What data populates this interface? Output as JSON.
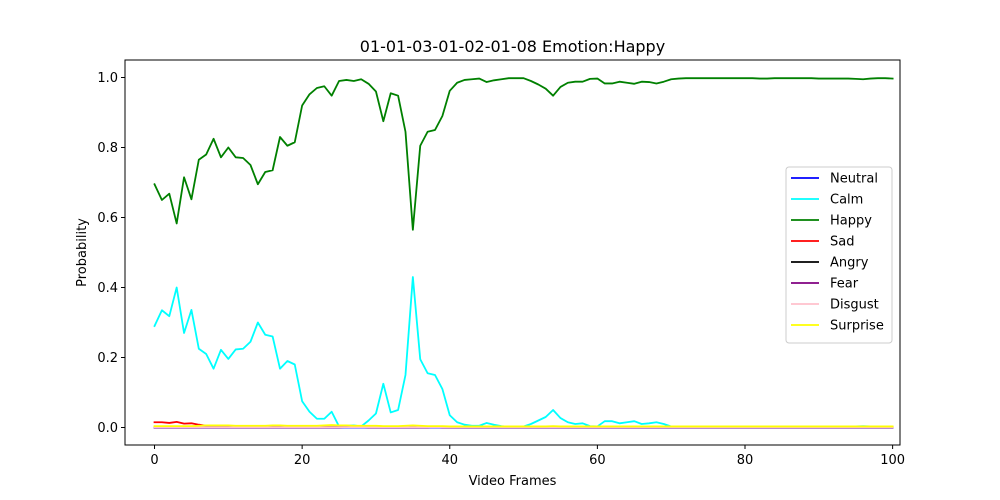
{
  "chart_data": {
    "type": "line",
    "title": "01-01-03-01-02-01-08 Emotion:Happy",
    "xlabel": "Video Frames",
    "ylabel": "Probability",
    "xlim": [
      -4,
      101
    ],
    "ylim": [
      -0.05,
      1.05
    ],
    "xticks": [
      0,
      20,
      40,
      60,
      80,
      100
    ],
    "yticks": [
      0.0,
      0.2,
      0.4,
      0.6,
      0.8,
      1.0
    ],
    "xtick_labels": [
      "0",
      "20",
      "40",
      "60",
      "80",
      "100"
    ],
    "ytick_labels": [
      "0.0",
      "0.2",
      "0.4",
      "0.6",
      "0.8",
      "1.0"
    ],
    "grid": false,
    "legend_position": "center-right",
    "x": [
      0,
      1,
      2,
      3,
      4,
      5,
      6,
      7,
      8,
      9,
      10,
      11,
      12,
      13,
      14,
      15,
      16,
      17,
      18,
      19,
      20,
      21,
      22,
      23,
      24,
      25,
      26,
      27,
      28,
      29,
      30,
      31,
      32,
      33,
      34,
      35,
      36,
      37,
      38,
      39,
      40,
      41,
      42,
      43,
      44,
      45,
      46,
      47,
      48,
      49,
      50,
      51,
      52,
      53,
      54,
      55,
      56,
      57,
      58,
      59,
      60,
      61,
      62,
      63,
      64,
      65,
      66,
      67,
      68,
      69,
      70,
      71,
      72,
      73,
      74,
      75,
      76,
      77,
      78,
      79,
      80,
      81,
      82,
      83,
      84,
      85,
      86,
      87,
      88,
      89,
      90,
      91,
      92,
      93,
      94,
      95,
      96,
      97,
      98,
      99,
      100
    ],
    "series": [
      {
        "name": "Neutral",
        "color": "#0000ff",
        "values": [
          0,
          0,
          0,
          0,
          0,
          0,
          0,
          0,
          0,
          0,
          0,
          0,
          0,
          0,
          0,
          0,
          0,
          0,
          0,
          0,
          0,
          0,
          0,
          0,
          0,
          0,
          0,
          0,
          0,
          0,
          0,
          0,
          0,
          0,
          0,
          0,
          0,
          0,
          0,
          0,
          0,
          0,
          0,
          0,
          0,
          0,
          0,
          0,
          0,
          0,
          0,
          0,
          0,
          0,
          0,
          0,
          0,
          0,
          0,
          0,
          0,
          0,
          0,
          0,
          0,
          0,
          0,
          0,
          0,
          0,
          0,
          0,
          0,
          0,
          0,
          0,
          0,
          0,
          0,
          0,
          0,
          0,
          0,
          0,
          0,
          0,
          0,
          0,
          0,
          0,
          0,
          0,
          0,
          0,
          0,
          0,
          0,
          0,
          0,
          0,
          0
        ]
      },
      {
        "name": "Calm",
        "color": "#00ffff",
        "values": [
          0.29,
          0.335,
          0.318,
          0.4,
          0.27,
          0.336,
          0.225,
          0.21,
          0.168,
          0.222,
          0.196,
          0.223,
          0.225,
          0.245,
          0.3,
          0.265,
          0.26,
          0.168,
          0.19,
          0.18,
          0.075,
          0.045,
          0.025,
          0.025,
          0.045,
          0.003,
          0.005,
          0.006,
          0.003,
          0.02,
          0.04,
          0.125,
          0.043,
          0.05,
          0.15,
          0.43,
          0.195,
          0.155,
          0.15,
          0.11,
          0.035,
          0.015,
          0.008,
          0.005,
          0.005,
          0.013,
          0.008,
          0.004,
          0.002,
          0.002,
          0.003,
          0.01,
          0.02,
          0.03,
          0.05,
          0.027,
          0.015,
          0.01,
          0.012,
          0.004,
          0.003,
          0.018,
          0.018,
          0.012,
          0.015,
          0.018,
          0.01,
          0.012,
          0.015,
          0.01,
          0.003,
          0.002,
          0.002,
          0.002,
          0.002,
          0.002,
          0.002,
          0.002,
          0.002,
          0.002,
          0.002,
          0.002,
          0.002,
          0.002,
          0.002,
          0.002,
          0.002,
          0.002,
          0.002,
          0.002,
          0.003,
          0.003,
          0.003,
          0.003,
          0.003,
          0.003,
          0.004,
          0.003,
          0.002,
          0.002,
          0.002
        ]
      },
      {
        "name": "Happy",
        "color": "#008000",
        "values": [
          0.695,
          0.65,
          0.668,
          0.583,
          0.715,
          0.652,
          0.765,
          0.78,
          0.825,
          0.772,
          0.8,
          0.772,
          0.77,
          0.75,
          0.695,
          0.73,
          0.735,
          0.83,
          0.805,
          0.815,
          0.92,
          0.952,
          0.97,
          0.975,
          0.948,
          0.99,
          0.993,
          0.99,
          0.995,
          0.982,
          0.96,
          0.875,
          0.955,
          0.948,
          0.845,
          0.565,
          0.805,
          0.845,
          0.85,
          0.89,
          0.962,
          0.985,
          0.993,
          0.995,
          0.997,
          0.987,
          0.992,
          0.995,
          0.998,
          0.998,
          0.998,
          0.99,
          0.98,
          0.968,
          0.948,
          0.973,
          0.985,
          0.988,
          0.988,
          0.996,
          0.997,
          0.983,
          0.983,
          0.988,
          0.985,
          0.982,
          0.988,
          0.987,
          0.983,
          0.988,
          0.995,
          0.997,
          0.998,
          0.998,
          0.998,
          0.998,
          0.998,
          0.998,
          0.998,
          0.998,
          0.998,
          0.998,
          0.997,
          0.997,
          0.998,
          0.998,
          0.998,
          0.998,
          0.998,
          0.998,
          0.997,
          0.997,
          0.997,
          0.997,
          0.997,
          0.996,
          0.995,
          0.997,
          0.998,
          0.998,
          0.997
        ]
      },
      {
        "name": "Sad",
        "color": "#ff0000",
        "values": [
          0.015,
          0.015,
          0.013,
          0.016,
          0.011,
          0.012,
          0.008,
          0.005,
          0.004,
          0.003,
          0.003,
          0.002,
          0.002,
          0.002,
          0.002,
          0.002,
          0.002,
          0.002,
          0.002,
          0.002,
          0.002,
          0.002,
          0.002,
          0.002,
          0.002,
          0.002,
          0.002,
          0.002,
          0.002,
          0.002,
          0.002,
          0.002,
          0.002,
          0.002,
          0.002,
          0.002,
          0.002,
          0.002,
          0.002,
          0.002,
          0.002,
          0.001,
          0.001,
          0.001,
          0.001,
          0.001,
          0.001,
          0.001,
          0.001,
          0.001,
          0.001,
          0.001,
          0.001,
          0.001,
          0.001,
          0.001,
          0.001,
          0.001,
          0.001,
          0.001,
          0.001,
          0.001,
          0.001,
          0.001,
          0.001,
          0.001,
          0.001,
          0.001,
          0.001,
          0.001,
          0.001,
          0.001,
          0.001,
          0.001,
          0.001,
          0.001,
          0.001,
          0.001,
          0.001,
          0.001,
          0.001,
          0.001,
          0.001,
          0.001,
          0.001,
          0.001,
          0.001,
          0.001,
          0.001,
          0.001,
          0.001,
          0.001,
          0.001,
          0.001,
          0.001,
          0.001,
          0.001,
          0.001,
          0.001,
          0.001,
          0.001
        ]
      },
      {
        "name": "Angry",
        "color": "#000000",
        "values": [
          0.001,
          0.001,
          0.001,
          0.001,
          0.001,
          0.001,
          0.001,
          0.001,
          0.001,
          0.001,
          0.001,
          0.001,
          0.001,
          0.001,
          0.001,
          0.001,
          0.001,
          0.001,
          0.001,
          0.001,
          0.001,
          0.001,
          0.001,
          0.001,
          0.001,
          0.001,
          0.001,
          0.001,
          0.001,
          0.001,
          0.001,
          0.001,
          0.001,
          0.001,
          0.001,
          0.001,
          0.001,
          0.001,
          0.001,
          0.001,
          0.001,
          0.001,
          0.001,
          0.001,
          0.001,
          0.001,
          0.001,
          0.001,
          0.001,
          0.001,
          0.001,
          0.001,
          0.001,
          0.001,
          0.001,
          0.001,
          0.001,
          0.001,
          0.001,
          0.001,
          0.001,
          0.001,
          0.001,
          0.001,
          0.001,
          0.001,
          0.001,
          0.001,
          0.001,
          0.001,
          0.001,
          0.001,
          0.001,
          0.001,
          0.001,
          0.001,
          0.001,
          0.001,
          0.001,
          0.001,
          0.001,
          0.001,
          0.001,
          0.001,
          0.001,
          0.001,
          0.001,
          0.001,
          0.001,
          0.001,
          0.001,
          0.001,
          0.001,
          0.001,
          0.001,
          0.001,
          0.001,
          0.001,
          0.001,
          0.001,
          0.001
        ]
      },
      {
        "name": "Fear",
        "color": "#800080",
        "values": [
          0,
          0,
          0,
          0,
          0,
          0,
          0,
          0,
          0,
          0,
          0,
          0,
          0,
          0,
          0,
          0,
          0,
          0,
          0,
          0,
          0,
          0,
          0,
          0,
          0,
          0,
          0.002,
          0.003,
          0.002,
          0,
          0,
          0,
          0,
          0,
          0,
          0,
          0,
          0,
          0.003,
          0,
          0,
          0,
          0,
          0,
          0,
          0,
          0,
          0,
          0,
          0,
          0,
          0,
          0,
          0,
          0,
          0,
          0,
          0,
          0,
          0,
          0,
          0,
          0,
          0,
          0,
          0,
          0,
          0,
          0,
          0,
          0,
          0,
          0,
          0,
          0,
          0,
          0,
          0,
          0,
          0,
          0,
          0,
          0,
          0,
          0,
          0,
          0,
          0,
          0,
          0,
          0,
          0,
          0,
          0,
          0,
          0,
          0,
          0,
          0,
          0,
          0
        ]
      },
      {
        "name": "Disgust",
        "color": "#ffc0cb",
        "values": [
          0.001,
          0.001,
          0.001,
          0.001,
          0.001,
          0.001,
          0.001,
          0.001,
          0.001,
          0.001,
          0.001,
          0.001,
          0.001,
          0.001,
          0.001,
          0.001,
          0.001,
          0.001,
          0.001,
          0.001,
          0.001,
          0.001,
          0.001,
          0.001,
          0.001,
          0.001,
          0.001,
          0.001,
          0.001,
          0.001,
          0.001,
          0.001,
          0.001,
          0.001,
          0.001,
          0.001,
          0.001,
          0.001,
          0.001,
          0.001,
          0.001,
          0.001,
          0.001,
          0.001,
          0.001,
          0.001,
          0.001,
          0.001,
          0.001,
          0.001,
          0.001,
          0.001,
          0.001,
          0.001,
          0.001,
          0.001,
          0.001,
          0.001,
          0.001,
          0.001,
          0.001,
          0.001,
          0.001,
          0.001,
          0.001,
          0.001,
          0.001,
          0.001,
          0.001,
          0.001,
          0.001,
          0.001,
          0.001,
          0.001,
          0.001,
          0.001,
          0.001,
          0.001,
          0.001,
          0.001,
          0.001,
          0.001,
          0.001,
          0.001,
          0.001,
          0.001,
          0.001,
          0.001,
          0.001,
          0.001,
          0.001,
          0.001,
          0.001,
          0.001,
          0.001,
          0.001,
          0.001,
          0.001,
          0.001,
          0.001,
          0.001
        ]
      },
      {
        "name": "Surprise",
        "color": "#ffff00",
        "values": [
          0.004,
          0.004,
          0.004,
          0.004,
          0.004,
          0.004,
          0.005,
          0.006,
          0.006,
          0.006,
          0.006,
          0.005,
          0.005,
          0.005,
          0.005,
          0.005,
          0.006,
          0.006,
          0.005,
          0.005,
          0.005,
          0.005,
          0.005,
          0.006,
          0.007,
          0.006,
          0.006,
          0.005,
          0.005,
          0.005,
          0.005,
          0.004,
          0.004,
          0.004,
          0.005,
          0.006,
          0.005,
          0.004,
          0.004,
          0.004,
          0.003,
          0.003,
          0.003,
          0.003,
          0.003,
          0.003,
          0.003,
          0.003,
          0.003,
          0.003,
          0.003,
          0.003,
          0.003,
          0.003,
          0.004,
          0.003,
          0.003,
          0.003,
          0.003,
          0.003,
          0.003,
          0.003,
          0.003,
          0.003,
          0.003,
          0.003,
          0.003,
          0.003,
          0.003,
          0.003,
          0.003,
          0.003,
          0.003,
          0.003,
          0.003,
          0.003,
          0.003,
          0.003,
          0.003,
          0.003,
          0.003,
          0.003,
          0.003,
          0.003,
          0.003,
          0.003,
          0.003,
          0.003,
          0.003,
          0.003,
          0.003,
          0.003,
          0.003,
          0.003,
          0.003,
          0.003,
          0.003,
          0.003,
          0.003,
          0.003,
          0.003
        ]
      }
    ]
  }
}
